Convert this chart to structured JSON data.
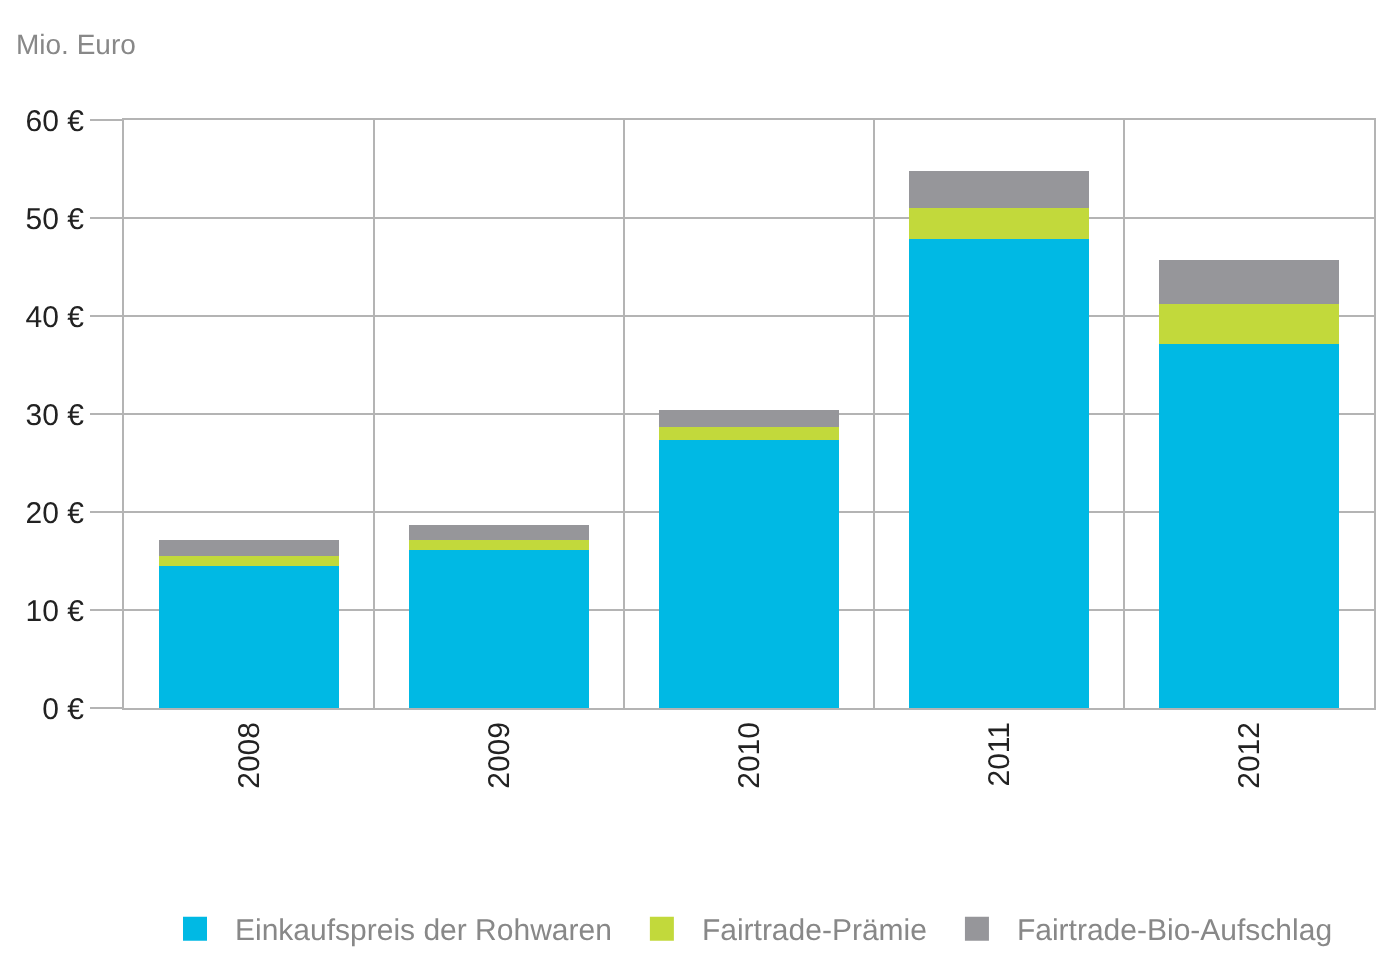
{
  "chart_data": {
    "type": "bar",
    "stacked": true,
    "ylabel": "Mio. Euro",
    "categories": [
      "2008",
      "2009",
      "2010",
      "2011",
      "2012"
    ],
    "series": [
      {
        "name": "Einkaufspreis der Rohwaren",
        "color": "#00b9e4",
        "values": [
          14.5,
          16.1,
          27.3,
          47.9,
          37.1
        ]
      },
      {
        "name": "Fairtrade-Prämie",
        "color": "#c2d93b",
        "values": [
          1.0,
          1.0,
          1.4,
          3.1,
          4.1
        ]
      },
      {
        "name": "Fairtrade-Bio-Aufschlag",
        "color": "#96969a",
        "values": [
          1.6,
          1.6,
          1.7,
          3.8,
          4.5
        ]
      }
    ],
    "ylim": [
      0,
      60
    ],
    "yticks": [
      {
        "value": 0,
        "label": "0 €"
      },
      {
        "value": 10,
        "label": "10 €"
      },
      {
        "value": 20,
        "label": "20 €"
      },
      {
        "value": 30,
        "label": "30 €"
      },
      {
        "value": 40,
        "label": "40 €"
      },
      {
        "value": 50,
        "label": "50 €"
      },
      {
        "value": 60,
        "label": "60 €"
      }
    ],
    "grid": true,
    "legend": "bottom"
  }
}
